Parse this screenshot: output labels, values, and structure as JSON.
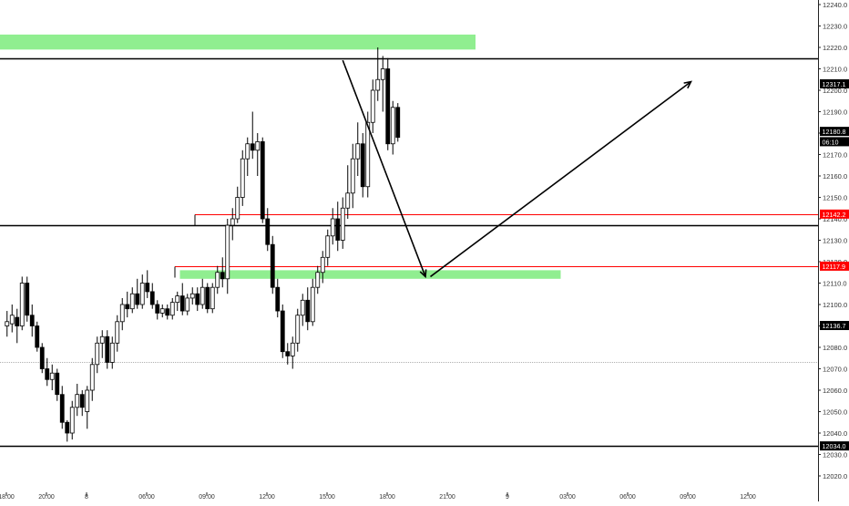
{
  "colors": {
    "bull_body": "#ffffff",
    "bear_body": "#000000",
    "wick": "#000000",
    "zone_green": "#90ee90",
    "level_black": "#000000",
    "level_red": "#ff0000",
    "grid_dotted": "#b0b0b0",
    "tag_bg": "#000000",
    "tag_red_bg": "#ff0000",
    "tag_text": "#ffffff",
    "axis_text": "#333333"
  },
  "chart_data": {
    "type": "candlestick",
    "title": "",
    "y_axis": {
      "min": 12020,
      "max": 12240,
      "ticks": [
        "12020.0",
        "12030.0",
        "12040.0",
        "12050.0",
        "12060.0",
        "12070.0",
        "12080.0",
        "12090.0",
        "12100.0",
        "12110.0",
        "12120.0",
        "12130.0",
        "12140.0",
        "12150.0",
        "12160.0",
        "12170.0",
        "12180.0",
        "12190.0",
        "12200.0",
        "12210.0",
        "12220.0",
        "12230.0",
        "12240.0"
      ]
    },
    "x_axis": {
      "ticks": [
        {
          "label": "18:00",
          "bar": 0
        },
        {
          "label": "20:00",
          "bar": 8
        },
        {
          "label": "8",
          "bar": 16
        },
        {
          "label": "06:00",
          "bar": 28
        },
        {
          "label": "09:00",
          "bar": 40
        },
        {
          "label": "12:00",
          "bar": 52
        },
        {
          "label": "15:00",
          "bar": 64
        },
        {
          "label": "18:00",
          "bar": 76
        },
        {
          "label": "21:00",
          "bar": 88
        },
        {
          "label": "9",
          "bar": 100
        },
        {
          "label": "03:00",
          "bar": 112
        },
        {
          "label": "06:00",
          "bar": 124
        },
        {
          "label": "09:00",
          "bar": 136
        },
        {
          "label": "12:00",
          "bar": 148
        }
      ]
    },
    "bar_spacing_note": "",
    "candles": [
      {
        "o": 12090,
        "h": 12097,
        "l": 12085,
        "c": 12092
      },
      {
        "o": 12091,
        "h": 12100,
        "l": 12087,
        "c": 12095
      },
      {
        "o": 12094,
        "h": 12098,
        "l": 12082,
        "c": 12090
      },
      {
        "o": 12090,
        "h": 12113,
        "l": 12088,
        "c": 12110
      },
      {
        "o": 12110,
        "h": 12113,
        "l": 12092,
        "c": 12095
      },
      {
        "o": 12095,
        "h": 12100,
        "l": 12085,
        "c": 12090
      },
      {
        "o": 12090,
        "h": 12092,
        "l": 12078,
        "c": 12080
      },
      {
        "o": 12080,
        "h": 12082,
        "l": 12068,
        "c": 12070
      },
      {
        "o": 12070,
        "h": 12075,
        "l": 12062,
        "c": 12065
      },
      {
        "o": 12065,
        "h": 12072,
        "l": 12060,
        "c": 12068
      },
      {
        "o": 12068,
        "h": 12070,
        "l": 12055,
        "c": 12058
      },
      {
        "o": 12058,
        "h": 12062,
        "l": 12042,
        "c": 12045
      },
      {
        "o": 12045,
        "h": 12046,
        "l": 12036,
        "c": 12040
      },
      {
        "o": 12040,
        "h": 12055,
        "l": 12037,
        "c": 12052
      },
      {
        "o": 12052,
        "h": 12063,
        "l": 12048,
        "c": 12058
      },
      {
        "o": 12058,
        "h": 12060,
        "l": 12048,
        "c": 12052
      },
      {
        "o": 12050,
        "h": 12062,
        "l": 12042,
        "c": 12060
      },
      {
        "o": 12060,
        "h": 12075,
        "l": 12055,
        "c": 12072
      },
      {
        "o": 12072,
        "h": 12085,
        "l": 12068,
        "c": 12082
      },
      {
        "o": 12082,
        "h": 12088,
        "l": 12075,
        "c": 12085
      },
      {
        "o": 12085,
        "h": 12088,
        "l": 12070,
        "c": 12073
      },
      {
        "o": 12073,
        "h": 12085,
        "l": 12070,
        "c": 12082
      },
      {
        "o": 12082,
        "h": 12095,
        "l": 12078,
        "c": 12092
      },
      {
        "o": 12092,
        "h": 12103,
        "l": 12088,
        "c": 12100
      },
      {
        "o": 12100,
        "h": 12106,
        "l": 12094,
        "c": 12098
      },
      {
        "o": 12098,
        "h": 12108,
        "l": 12096,
        "c": 12105
      },
      {
        "o": 12105,
        "h": 12112,
        "l": 12098,
        "c": 12100
      },
      {
        "o": 12100,
        "h": 12114,
        "l": 12098,
        "c": 12110
      },
      {
        "o": 12110,
        "h": 12116,
        "l": 12103,
        "c": 12106
      },
      {
        "o": 12106,
        "h": 12110,
        "l": 12098,
        "c": 12100
      },
      {
        "o": 12100,
        "h": 12102,
        "l": 12093,
        "c": 12096
      },
      {
        "o": 12096,
        "h": 12100,
        "l": 12094,
        "c": 12098
      },
      {
        "o": 12098,
        "h": 12100,
        "l": 12093,
        "c": 12095
      },
      {
        "o": 12095,
        "h": 12103,
        "l": 12093,
        "c": 12101
      },
      {
        "o": 12101,
        "h": 12106,
        "l": 12097,
        "c": 12104
      },
      {
        "o": 12104,
        "h": 12110,
        "l": 12095,
        "c": 12097
      },
      {
        "o": 12097,
        "h": 12105,
        "l": 12095,
        "c": 12103
      },
      {
        "o": 12103,
        "h": 12108,
        "l": 12100,
        "c": 12105
      },
      {
        "o": 12105,
        "h": 12108,
        "l": 12097,
        "c": 12100
      },
      {
        "o": 12100,
        "h": 12112,
        "l": 12098,
        "c": 12108
      },
      {
        "o": 12108,
        "h": 12110,
        "l": 12096,
        "c": 12098
      },
      {
        "o": 12098,
        "h": 12110,
        "l": 12096,
        "c": 12108
      },
      {
        "o": 12108,
        "h": 12118,
        "l": 12105,
        "c": 12115
      },
      {
        "o": 12115,
        "h": 12122,
        "l": 12108,
        "c": 12112
      },
      {
        "o": 12112,
        "h": 12140,
        "l": 12105,
        "c": 12137
      },
      {
        "o": 12137,
        "h": 12145,
        "l": 12130,
        "c": 12140
      },
      {
        "o": 12140,
        "h": 12155,
        "l": 12138,
        "c": 12150
      },
      {
        "o": 12150,
        "h": 12172,
        "l": 12146,
        "c": 12168
      },
      {
        "o": 12168,
        "h": 12178,
        "l": 12160,
        "c": 12175
      },
      {
        "o": 12175,
        "h": 12190,
        "l": 12168,
        "c": 12172
      },
      {
        "o": 12172,
        "h": 12180,
        "l": 12160,
        "c": 12176
      },
      {
        "o": 12176,
        "h": 12178,
        "l": 12138,
        "c": 12140
      },
      {
        "o": 12140,
        "h": 12145,
        "l": 12125,
        "c": 12128
      },
      {
        "o": 12128,
        "h": 12132,
        "l": 12105,
        "c": 12108
      },
      {
        "o": 12108,
        "h": 12112,
        "l": 12094,
        "c": 12097
      },
      {
        "o": 12097,
        "h": 12100,
        "l": 12075,
        "c": 12078
      },
      {
        "o": 12078,
        "h": 12082,
        "l": 12072,
        "c": 12076
      },
      {
        "o": 12076,
        "h": 12085,
        "l": 12070,
        "c": 12082
      },
      {
        "o": 12082,
        "h": 12098,
        "l": 12078,
        "c": 12095
      },
      {
        "o": 12095,
        "h": 12105,
        "l": 12090,
        "c": 12102
      },
      {
        "o": 12102,
        "h": 12108,
        "l": 12088,
        "c": 12092
      },
      {
        "o": 12092,
        "h": 12112,
        "l": 12090,
        "c": 12108
      },
      {
        "o": 12108,
        "h": 12118,
        "l": 12105,
        "c": 12115
      },
      {
        "o": 12115,
        "h": 12125,
        "l": 12110,
        "c": 12122
      },
      {
        "o": 12122,
        "h": 12135,
        "l": 12118,
        "c": 12132
      },
      {
        "o": 12132,
        "h": 12145,
        "l": 12128,
        "c": 12140
      },
      {
        "o": 12140,
        "h": 12148,
        "l": 12125,
        "c": 12130
      },
      {
        "o": 12130,
        "h": 12150,
        "l": 12126,
        "c": 12145
      },
      {
        "o": 12145,
        "h": 12165,
        "l": 12140,
        "c": 12152
      },
      {
        "o": 12152,
        "h": 12175,
        "l": 12145,
        "c": 12168
      },
      {
        "o": 12168,
        "h": 12185,
        "l": 12160,
        "c": 12175
      },
      {
        "o": 12175,
        "h": 12180,
        "l": 12150,
        "c": 12155
      },
      {
        "o": 12155,
        "h": 12190,
        "l": 12150,
        "c": 12185
      },
      {
        "o": 12185,
        "h": 12205,
        "l": 12180,
        "c": 12200
      },
      {
        "o": 12200,
        "h": 12220,
        "l": 12195,
        "c": 12205
      },
      {
        "o": 12205,
        "h": 12216,
        "l": 12190,
        "c": 12210
      },
      {
        "o": 12210,
        "h": 12215,
        "l": 12172,
        "c": 12175
      },
      {
        "o": 12175,
        "h": 12195,
        "l": 12170,
        "c": 12192
      },
      {
        "o": 12192,
        "h": 12194,
        "l": 12176,
        "c": 12178
      }
    ],
    "zones": [
      {
        "y_top": 12226,
        "y_bottom": 12219,
        "x_start_bar": -1,
        "x_end_bar": 94
      },
      {
        "y_top": 12116,
        "y_bottom": 12112,
        "x_start_bar": 35,
        "x_end_bar": 111
      }
    ],
    "horizontal_levels": [
      {
        "value": 12215,
        "style": "solid-black"
      },
      {
        "value": 12137,
        "style": "solid-black"
      },
      {
        "value": 12034,
        "style": "solid-black"
      },
      {
        "value": 12073,
        "style": "dotted-grey"
      }
    ],
    "red_levels": [
      {
        "value": 12142.2,
        "x_start_bar": 38
      },
      {
        "value": 12117.9,
        "x_start_bar": 34
      }
    ],
    "arrows": [
      {
        "from_bar": 67.5,
        "from_value": 12214,
        "to_bar": 84,
        "to_value": 12113
      },
      {
        "from_bar": 85,
        "from_value": 12113,
        "to_bar": 137,
        "to_value": 12204
      }
    ],
    "price_tags": [
      {
        "value": 12142.2,
        "label": "12142.2",
        "style": "red"
      },
      {
        "value": 12117.9,
        "label": "12117.9",
        "style": "red"
      },
      {
        "value": 12203.0,
        "label": "12317.1",
        "style": "black"
      },
      {
        "value": 12180.8,
        "label": "12180.8",
        "style": "black"
      },
      {
        "value": 12176.0,
        "label": "06:10",
        "style": "black"
      },
      {
        "value": 12090.2,
        "label": "12136.7",
        "style": "black"
      },
      {
        "value": 12034.0,
        "label": "12034.0",
        "style": "black"
      }
    ]
  }
}
